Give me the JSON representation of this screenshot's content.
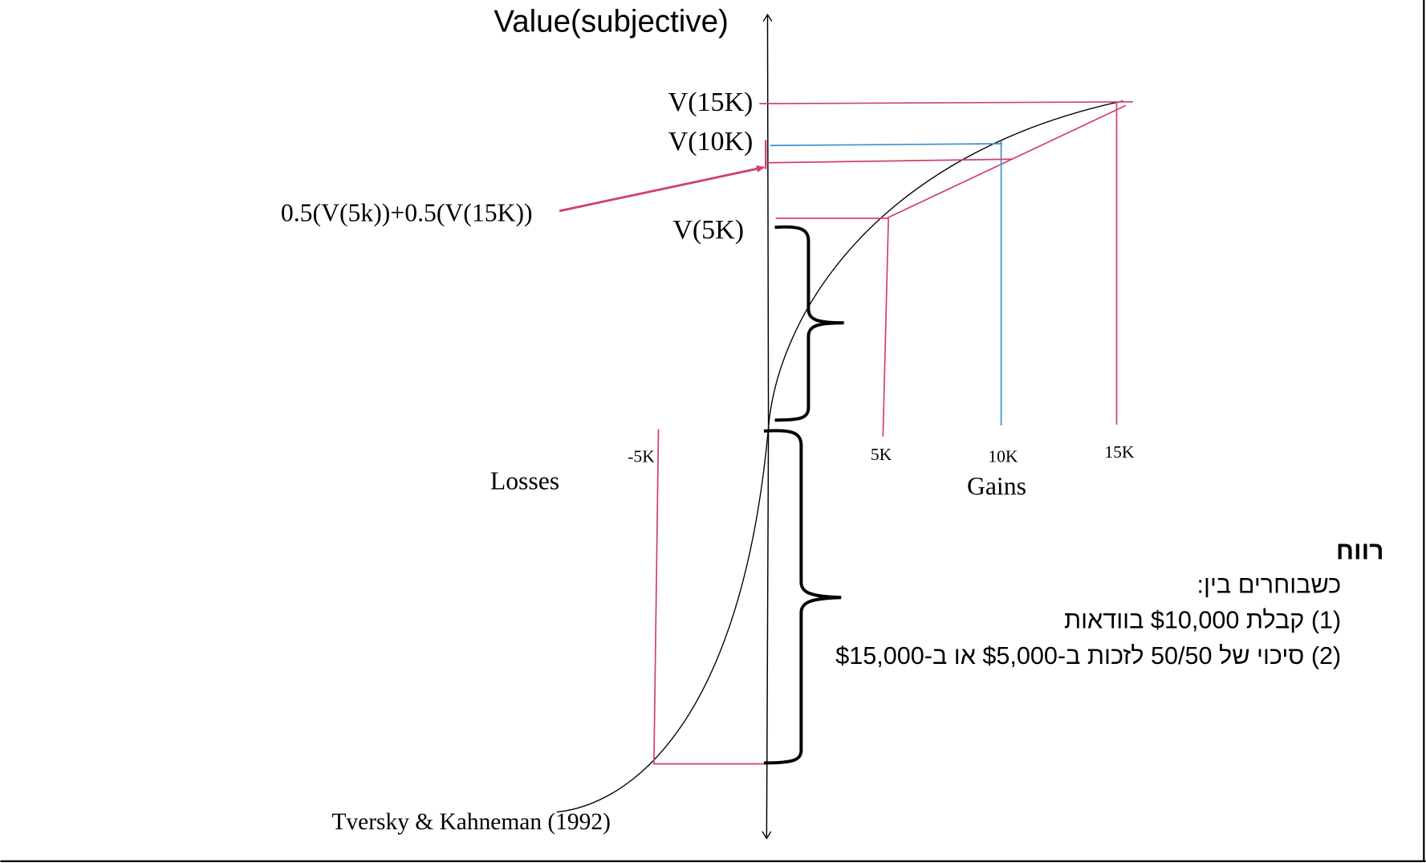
{
  "axis": {
    "y_label": "Value(subjective)"
  },
  "labels": {
    "v15k": "V(15K)",
    "v10k": "V(10K)",
    "v5k": "V(5K)",
    "expected": "0.5(V(5k))+0.5(V(15K))",
    "tick_neg5k": "-5K",
    "tick_5k": "5K",
    "tick_10k": "10K",
    "tick_15k": "15K",
    "losses": "Losses",
    "gains": "Gains",
    "citation": "Tversky & Kahneman (1992)"
  },
  "hebrew": {
    "title": "רווח",
    "line1": "כשבוחרים בין:",
    "line2": "(1) קבלת $10,000 בוודאות",
    "line3": "(2) סיכוי של 50/50 לזכות ב-$5,000 או ב-$15,000"
  },
  "colors": {
    "pink": "#d0406e",
    "blue": "#3a8fd0",
    "curve": "#000000"
  }
}
